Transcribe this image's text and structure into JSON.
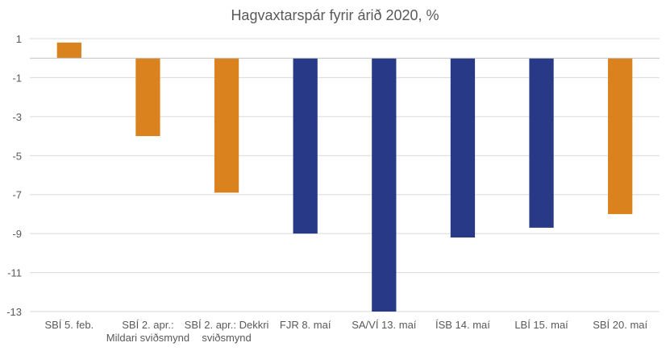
{
  "chart_data": {
    "type": "bar",
    "title": "Hagvaxtarspár  fyrir árið 2020, %",
    "xlabel": "",
    "ylabel": "",
    "ylim": [
      -13,
      1
    ],
    "yticks": [
      1,
      -1,
      -3,
      -5,
      -7,
      -9,
      -11,
      -13
    ],
    "grid": true,
    "legend": "none",
    "categories": [
      [
        "SBÍ 5. feb."
      ],
      [
        "SBÍ 2. apr.:",
        "Mildari sviðsmynd"
      ],
      [
        "SBÍ 2. apr.: Dekkri",
        "sviðsmynd"
      ],
      [
        "FJR 8. maí"
      ],
      [
        "SA/VÍ 13. maí"
      ],
      [
        "ÍSB 14. maí"
      ],
      [
        "LBÍ 15. maí"
      ],
      [
        "SBÍ 20. maí"
      ]
    ],
    "values": [
      0.8,
      -4.0,
      -6.9,
      -9.0,
      -13.0,
      -9.2,
      -8.7,
      -8.0
    ],
    "bar_colors": [
      "#D9821E",
      "#D9821E",
      "#D9821E",
      "#283A87",
      "#283A87",
      "#283A87",
      "#283A87",
      "#D9821E"
    ]
  }
}
